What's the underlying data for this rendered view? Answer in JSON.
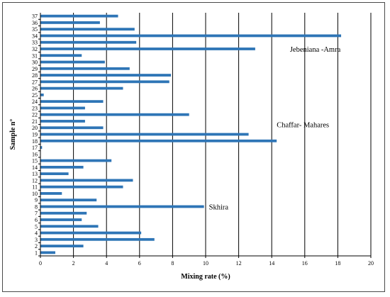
{
  "chart_data": {
    "type": "bar",
    "orientation": "horizontal",
    "xlabel": "Mixing rate (%)",
    "ylabel": "Sample n°",
    "xlim": [
      0,
      20
    ],
    "xticks": [
      0,
      2,
      4,
      6,
      8,
      10,
      12,
      14,
      16,
      18,
      20
    ],
    "grid": "vertical",
    "bar_color": "#2e75b6",
    "categories": [
      "1",
      "2",
      "3",
      "4",
      "5",
      "6",
      "7",
      "8",
      "9",
      "10",
      "11",
      "12",
      "13",
      "14",
      "15",
      "16",
      "17",
      "18",
      "19",
      "20",
      "21",
      "22",
      "23",
      "24",
      "25",
      "26",
      "27",
      "28",
      "29",
      "30",
      "31",
      "32",
      "33",
      "34",
      "35",
      "36",
      "37"
    ],
    "values": [
      0.9,
      2.6,
      6.9,
      6.1,
      3.5,
      2.5,
      2.8,
      9.9,
      3.4,
      1.3,
      5.0,
      5.6,
      1.7,
      2.6,
      4.3,
      0.0,
      0.1,
      14.3,
      12.6,
      3.8,
      2.7,
      9.0,
      2.7,
      3.8,
      0.2,
      5.0,
      7.8,
      7.9,
      5.4,
      3.9,
      2.5,
      13.0,
      5.8,
      18.2,
      5.7,
      3.6,
      4.7
    ],
    "annotations": [
      {
        "text": "Jebeniana -Amra",
        "x": 15.1,
        "y": 32
      },
      {
        "text": "Chaffar- Mahares",
        "x": 14.3,
        "y": 20.5
      },
      {
        "text": "Skhira",
        "x": 10.2,
        "y": 8
      }
    ]
  }
}
